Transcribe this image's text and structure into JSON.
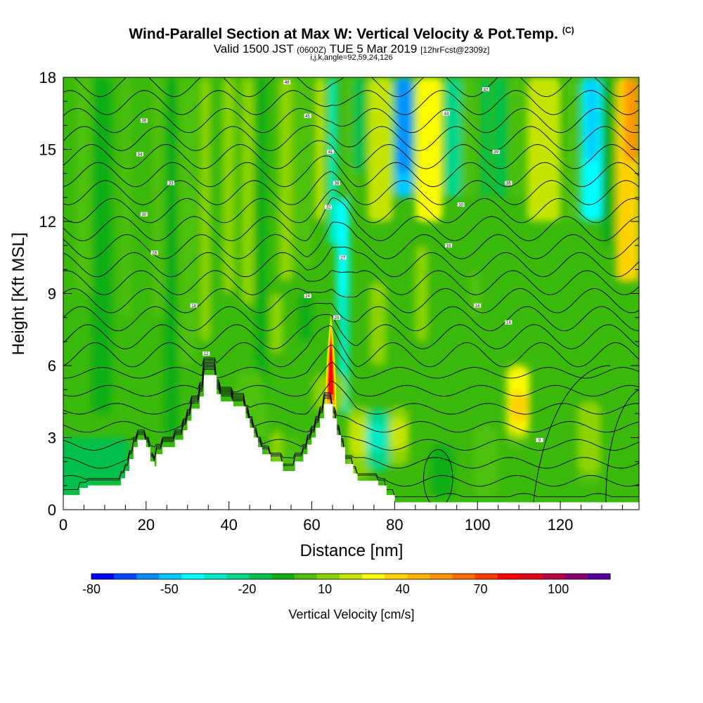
{
  "titles": {
    "main": "Wind-Parallel Section at Max W: Vertical Velocity & Pot.Temp.",
    "main_suffix": "(C)",
    "valid_a": "Valid 1500 JST",
    "valid_b": "(0600Z)",
    "valid_c": "TUE 5 Mar 2019",
    "valid_d": "[12hrFcst@2309z]",
    "params": "i,j,k,angle=92,59,24,126"
  },
  "chart_data": {
    "type": "heatmap",
    "title": "Wind-Parallel Section at Max W: Vertical Velocity & Pot.Temp.",
    "xlabel": "Distance [nm]",
    "ylabel": "Height [Kft MSL]",
    "xlim": [
      0,
      139
    ],
    "ylim": [
      0,
      18
    ],
    "x_ticks": [
      0,
      20,
      40,
      60,
      80,
      100,
      120
    ],
    "y_ticks": [
      0,
      3,
      6,
      9,
      12,
      15,
      18
    ],
    "terrain": [
      [
        0,
        0.6
      ],
      [
        4,
        0.6
      ],
      [
        4,
        0.9
      ],
      [
        6,
        0.9
      ],
      [
        6,
        1.0
      ],
      [
        14,
        1.0
      ],
      [
        14,
        1.3
      ],
      [
        15,
        1.3
      ],
      [
        15,
        1.6
      ],
      [
        16,
        1.6
      ],
      [
        16,
        2.1
      ],
      [
        17,
        2.1
      ],
      [
        17,
        2.6
      ],
      [
        18,
        2.6
      ],
      [
        18,
        2.9
      ],
      [
        20,
        2.9
      ],
      [
        20,
        2.6
      ],
      [
        21,
        2.6
      ],
      [
        21,
        2.0
      ],
      [
        22,
        2.0
      ],
      [
        22,
        1.8
      ],
      [
        22.5,
        1.8
      ],
      [
        22.5,
        2.3
      ],
      [
        24,
        2.3
      ],
      [
        24,
        2.6
      ],
      [
        27,
        2.6
      ],
      [
        27,
        2.9
      ],
      [
        29,
        2.9
      ],
      [
        29,
        3.3
      ],
      [
        30,
        3.3
      ],
      [
        30,
        3.7
      ],
      [
        31,
        3.7
      ],
      [
        31,
        4.2
      ],
      [
        33,
        4.2
      ],
      [
        33,
        4.7
      ],
      [
        34,
        4.7
      ],
      [
        34,
        5.6
      ],
      [
        37,
        5.6
      ],
      [
        37,
        4.8
      ],
      [
        38,
        4.8
      ],
      [
        38,
        4.5
      ],
      [
        41,
        4.5
      ],
      [
        41,
        4.3
      ],
      [
        44,
        4.3
      ],
      [
        44,
        3.8
      ],
      [
        45,
        3.8
      ],
      [
        45,
        3.4
      ],
      [
        46,
        3.4
      ],
      [
        46,
        3.0
      ],
      [
        47,
        3.0
      ],
      [
        47,
        2.6
      ],
      [
        48,
        2.6
      ],
      [
        48,
        2.3
      ],
      [
        50,
        2.3
      ],
      [
        50,
        2.0
      ],
      [
        53,
        2.0
      ],
      [
        53,
        1.6
      ],
      [
        56,
        1.6
      ],
      [
        56,
        2.0
      ],
      [
        58,
        2.0
      ],
      [
        58,
        2.3
      ],
      [
        59,
        2.3
      ],
      [
        59,
        2.7
      ],
      [
        60,
        2.7
      ],
      [
        60,
        3.0
      ],
      [
        61,
        3.0
      ],
      [
        61,
        3.4
      ],
      [
        62,
        3.4
      ],
      [
        62,
        3.8
      ],
      [
        63,
        3.8
      ],
      [
        63,
        4.4
      ],
      [
        65,
        4.4
      ],
      [
        65,
        3.8
      ],
      [
        66,
        3.8
      ],
      [
        66,
        3.1
      ],
      [
        67,
        3.1
      ],
      [
        67,
        2.6
      ],
      [
        68,
        2.6
      ],
      [
        68,
        1.9
      ],
      [
        70,
        1.9
      ],
      [
        70,
        1.5
      ],
      [
        71,
        1.5
      ],
      [
        71,
        1.2
      ],
      [
        76,
        1.2
      ],
      [
        76,
        1.0
      ],
      [
        78,
        1.0
      ],
      [
        78,
        0.6
      ],
      [
        80,
        0.6
      ],
      [
        80,
        0.3
      ],
      [
        139,
        0.3
      ]
    ],
    "w_structures": [
      {
        "x": 64.6,
        "y": 5.8,
        "value": 100
      },
      {
        "x": 110,
        "y": 4.4,
        "value": 45
      },
      {
        "x": 72,
        "y": 4.3,
        "value": 40
      },
      {
        "x": 81,
        "y": 4.1,
        "value": 35
      },
      {
        "x": 127,
        "y": 3.3,
        "value": 25
      },
      {
        "x": 136.5,
        "y": 16.5,
        "value": 70
      },
      {
        "x": 88,
        "y": 15.6,
        "value": 40
      },
      {
        "x": 74,
        "y": 16.6,
        "value": 30
      },
      {
        "x": 80,
        "y": 16.1,
        "value": -40
      },
      {
        "x": 127.5,
        "y": 15.6,
        "value": -35
      },
      {
        "x": 66,
        "y": 10.5,
        "value": -35
      },
      {
        "x": 116,
        "y": 16.5,
        "value": 35
      },
      {
        "x": 33,
        "y": 12,
        "value": 30
      },
      {
        "x": 47,
        "y": 10.5,
        "value": 30
      },
      {
        "x": 54,
        "y": 14.5,
        "value": 25
      }
    ],
    "theta_contour_labels": [
      {
        "x": 54,
        "y": 17.8,
        "label": "48"
      },
      {
        "x": 19.5,
        "y": 16.2,
        "label": "36"
      },
      {
        "x": 59,
        "y": 16.4,
        "label": "45"
      },
      {
        "x": 92.5,
        "y": 16.5,
        "label": "44"
      },
      {
        "x": 102,
        "y": 17.5,
        "label": "42"
      },
      {
        "x": 18.5,
        "y": 14.8,
        "label": "34"
      },
      {
        "x": 64.5,
        "y": 14.9,
        "label": "41"
      },
      {
        "x": 104.5,
        "y": 14.9,
        "label": "39"
      },
      {
        "x": 26,
        "y": 13.6,
        "label": "33"
      },
      {
        "x": 66,
        "y": 13.6,
        "label": "38"
      },
      {
        "x": 107.5,
        "y": 13.6,
        "label": "36"
      },
      {
        "x": 19.5,
        "y": 12.3,
        "label": "30"
      },
      {
        "x": 64,
        "y": 12.6,
        "label": "32"
      },
      {
        "x": 96,
        "y": 12.7,
        "label": "30"
      },
      {
        "x": 22,
        "y": 10.7,
        "label": "28"
      },
      {
        "x": 67.5,
        "y": 10.5,
        "label": "27"
      },
      {
        "x": 93,
        "y": 11.0,
        "label": "16"
      },
      {
        "x": 59,
        "y": 8.9,
        "label": "24"
      },
      {
        "x": 31.5,
        "y": 8.5,
        "label": "18"
      },
      {
        "x": 66,
        "y": 8.0,
        "label": "20"
      },
      {
        "x": 100,
        "y": 8.5,
        "label": "16"
      },
      {
        "x": 107.5,
        "y": 7.8,
        "label": "14"
      },
      {
        "x": 34.5,
        "y": 6.5,
        "label": "12"
      },
      {
        "x": 115,
        "y": 2.9,
        "label": "9"
      }
    ],
    "colorbar": {
      "label": "Vertical Velocity [cm/s]",
      "min": -80,
      "max": 120,
      "step": 10,
      "tick_values": [
        -80,
        -50,
        -20,
        10,
        40,
        70,
        100
      ],
      "tick_labels": [
        "-80",
        "-50",
        "-20",
        "10",
        "40",
        "70",
        "100"
      ],
      "colors": [
        "#0000ff",
        "#0045ff",
        "#008cff",
        "#00c8ff",
        "#00ffff",
        "#00ebc5",
        "#00d78b",
        "#00bf4d",
        "#10ad14",
        "#4ec108",
        "#8cd304",
        "#c5e500",
        "#fbfb00",
        "#ffd200",
        "#ffb400",
        "#ff9600",
        "#ff6e00",
        "#ff3c00",
        "#ff0000",
        "#df0014",
        "#b80043",
        "#8a0070",
        "#55009a"
      ]
    }
  }
}
